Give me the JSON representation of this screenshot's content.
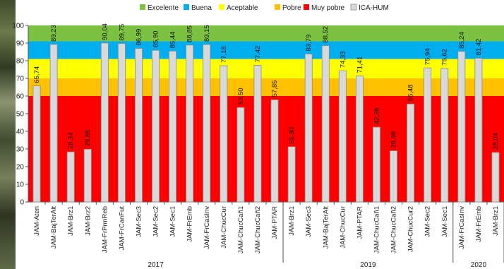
{
  "chart_data": {
    "type": "bar",
    "ylim": [
      0,
      100
    ],
    "yticks": [
      0,
      10,
      20,
      30,
      40,
      50,
      60,
      70,
      80,
      90,
      100
    ],
    "bands": [
      {
        "label": "Excelente",
        "from": 91,
        "to": 100,
        "color": "#7cc242"
      },
      {
        "label": "Buena",
        "from": 81,
        "to": 91,
        "color": "#00aeef"
      },
      {
        "label": "Aceptable",
        "from": 70,
        "to": 81,
        "color": "#ffff00"
      },
      {
        "label": "Pobre",
        "from": 60,
        "to": 70,
        "color": "#ffc000"
      },
      {
        "label": "Muy pobre",
        "from": 0,
        "to": 60,
        "color": "#ff0000"
      }
    ],
    "series": [
      {
        "name": "ICA-HUM",
        "color": "#d9d9d9"
      }
    ],
    "legend": [
      "Excelente",
      "Buena",
      "Aceptable",
      "Pobre",
      "Muy pobre",
      "ICA-HUM"
    ],
    "legend_position": "top",
    "categories": [
      "JAM-Aten",
      "JAM-BajTerAlt",
      "JAM-Brz1",
      "JAM-Brz2",
      "JAM-FrPrmReb",
      "JAM-FrCanFut",
      "JAM-Sec3",
      "JAM-Sec2",
      "JAM-Sec1",
      "JAM-FrEmb",
      "JAM-FrCasInv",
      "JAM-ChucCur",
      "JAM-ChucCañ1",
      "JAM-ChucCañ2",
      "JAM-PTAR",
      "JAM-Brz1",
      "JAM-Sec3",
      "JAM-BajTerAlt",
      "JAM-ChucCur",
      "JAM-PTAR",
      "JAM-ChucCañ1",
      "JAM-ChucCañ2",
      "JAM-ChucCur2",
      "JAM-Sec2",
      "JAM-Sec1",
      "JAM-FrCasInv",
      "JAM-FrEmb",
      "JAM-Brz1"
    ],
    "values": [
      65.74,
      89.23,
      28.34,
      29.86,
      90.04,
      89.75,
      86.99,
      85.9,
      85.44,
      88.85,
      89.15,
      77.18,
      53.5,
      77.42,
      57.85,
      31.3,
      83.79,
      88.52,
      74.33,
      71.41,
      42.36,
      28.98,
      55.48,
      75.94,
      75.62,
      85.24,
      81.42,
      28.04
    ],
    "value_labels": [
      "65,74",
      "89,23",
      "28,34",
      "29,86",
      "90,04",
      "89,75",
      "86,99",
      "85,90",
      "85,44",
      "88,85",
      "89,15",
      "77,18",
      "53,50",
      "77,42",
      "57,85",
      "31,30",
      "83,79",
      "88,52",
      "74,33",
      "71,41",
      "42,36",
      "28,98",
      "55,48",
      "75,94",
      "75,62",
      "85,24",
      "81,42",
      "28,04"
    ],
    "groups": [
      {
        "label": "2017",
        "start": 0,
        "end": 14
      },
      {
        "label": "2019",
        "start": 15,
        "end": 24
      },
      {
        "label": "2020",
        "start": 25,
        "end": 27
      }
    ]
  }
}
